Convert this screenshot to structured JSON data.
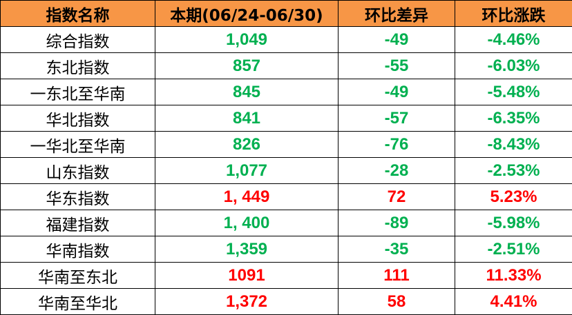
{
  "headers": [
    "指数名称",
    "本期(06/24-06/30)",
    "环比差异",
    "环比涨跌"
  ],
  "colors": {
    "header_bg": "#F79646",
    "up": "#FF0000",
    "down": "#00B050"
  },
  "rows": [
    {
      "name": "综合指数",
      "value": "1,049",
      "diff": "-49",
      "pct": "-4.46%",
      "trend": "down"
    },
    {
      "name": "东北指数",
      "value": "857",
      "diff": "-55",
      "pct": "-6.03%",
      "trend": "down"
    },
    {
      "name": "一东北至华南",
      "value": "845",
      "diff": "-49",
      "pct": "-5.48%",
      "trend": "down"
    },
    {
      "name": "华北指数",
      "value": "841",
      "diff": "-57",
      "pct": "-6.35%",
      "trend": "down"
    },
    {
      "name": "一华北至华南",
      "value": "826",
      "diff": "-76",
      "pct": "-8.43%",
      "trend": "down"
    },
    {
      "name": "山东指数",
      "value": "1,077",
      "diff": "-28",
      "pct": "-2.53%",
      "trend": "down"
    },
    {
      "name": "华东指数",
      "value": "1, 449",
      "diff": "72",
      "pct": "5.23%",
      "trend": "up"
    },
    {
      "name": "福建指数",
      "value": "1, 400",
      "diff": "-89",
      "pct": "-5.98%",
      "trend": "down"
    },
    {
      "name": "华南指数",
      "value": "1,359",
      "diff": "-35",
      "pct": "-2.51%",
      "trend": "down"
    },
    {
      "name": "华南至东北",
      "value": "1091",
      "diff": "111",
      "pct": "11.33%",
      "trend": "up"
    },
    {
      "name": "华南至华北",
      "value": "1,372",
      "diff": "58",
      "pct": "4.41%",
      "trend": "up"
    }
  ]
}
